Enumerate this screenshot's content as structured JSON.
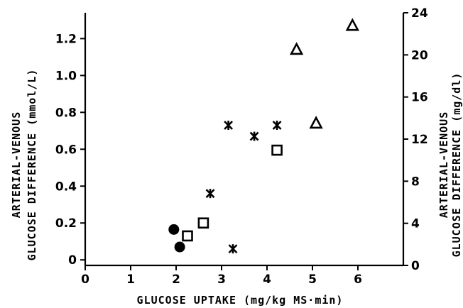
{
  "chart_data": {
    "type": "scatter",
    "title": "",
    "xlabel": "GLUCOSE UPTAKE (mg/kg MS·min)",
    "ylabel_left_lines": [
      "ARTERIAL-VENOUS",
      "GLUCOSE DIFFERENCE (mmol/L)"
    ],
    "ylabel_right_lines": [
      "ARTERIAL-VENOUS",
      "GLUCOSE DIFFERENCE (mg/dl)"
    ],
    "xlim": [
      0,
      7
    ],
    "ylim_left": [
      -0.03,
      1.34
    ],
    "ylim_right": [
      0,
      24
    ],
    "x_ticks": [
      0,
      1,
      2,
      3,
      4,
      5,
      6
    ],
    "x_tick_labels": [
      "0",
      "1",
      "2",
      "3",
      "4",
      "5",
      "6"
    ],
    "y_left_ticks": [
      0,
      0.2,
      0.4,
      0.6,
      0.8,
      1.0,
      1.2
    ],
    "y_left_tick_labels": [
      "0",
      "0.2",
      "0.4",
      "0.6",
      "0.8",
      "1.0",
      "1.2"
    ],
    "y_right_ticks": [
      0,
      4,
      8,
      12,
      16,
      20,
      24
    ],
    "y_right_tick_labels": [
      "0",
      "4",
      "8",
      "12",
      "16",
      "20",
      "24"
    ],
    "grid": false,
    "series": [
      {
        "marker": "filled-circle",
        "points": [
          [
            1.95,
            0.165
          ],
          [
            2.08,
            0.07
          ]
        ]
      },
      {
        "marker": "open-square",
        "points": [
          [
            2.25,
            0.13
          ],
          [
            2.6,
            0.2
          ],
          [
            4.22,
            0.595
          ]
        ]
      },
      {
        "marker": "asterisk",
        "points": [
          [
            2.75,
            0.36
          ],
          [
            3.15,
            0.73
          ],
          [
            3.25,
            0.06
          ],
          [
            3.72,
            0.67
          ],
          [
            4.22,
            0.73
          ]
        ]
      },
      {
        "marker": "open-triangle",
        "points": [
          [
            4.65,
            1.14
          ],
          [
            5.08,
            0.74
          ],
          [
            5.88,
            1.27
          ]
        ]
      }
    ]
  }
}
